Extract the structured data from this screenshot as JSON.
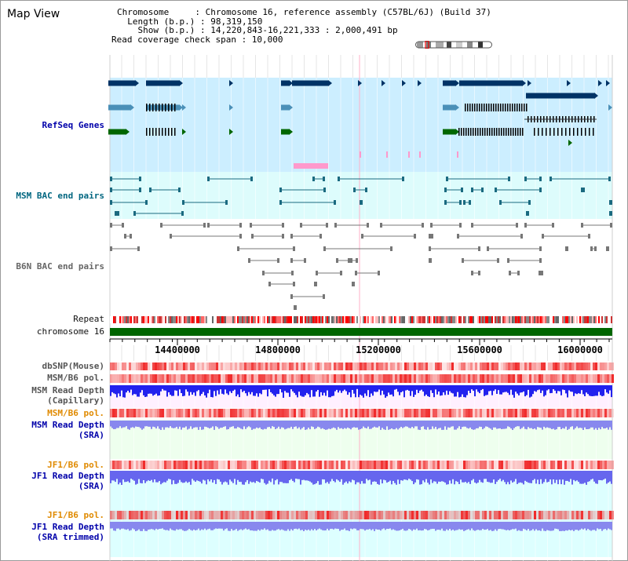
{
  "header": {
    "title": "Map View",
    "chromosome_line": "Chromosome     : Chromosome 16, reference assembly (C57BL/6J) (Build 37)",
    "length_line": "  Length (b.p.) : 98,319,150",
    "show_line": "    Show (b.p.) : 14,220,843-16,221,333 : 2,000,491 bp",
    "span_line": "Read coverage check span : 10,000"
  },
  "tracks": {
    "refseq": "RefSeq Genes",
    "msm_bac": "MSM BAC end pairs",
    "b6n_bac": "B6N BAC end pairs",
    "repeat": "Repeat",
    "chromosome": "chromosome 16",
    "dbsnp": "dbSNP(Mouse)",
    "msm_b6_pol": "MSM/B6 pol.",
    "msm_read_depth_1": "MSM Read Depth",
    "msm_read_depth_1b": "(Capillary)",
    "msm_b6_pol_2": "MSM/B6 pol.",
    "msm_read_depth_2": "MSM Read Depth",
    "msm_read_depth_2b": "(SRA)",
    "jf1_b6_pol": "JF1/B6 pol.",
    "jf1_read_depth": "JF1 Read Depth",
    "jf1_read_depth_b": "(SRA)",
    "jf1_b6_pol_2": "JF1/B6 pol.",
    "jf1_read_depth_2": "JF1 Read Depth",
    "jf1_read_depth_2b": "(SRA trimmed)"
  },
  "axis": {
    "ticks": [
      "14400000",
      "14800000",
      "15200000",
      "15600000",
      "16000000"
    ]
  },
  "colors": {
    "refseq_bg": "#cceeff",
    "bac_bg": "#ddfcfc",
    "gene_dark": "#003366",
    "gene_mid": "#4a90b8",
    "gene_green": "#006600",
    "chrom_green": "#006600",
    "pink": "#ff99cc",
    "capillary_bg": "#fff0ff",
    "sra_bg": "#eeffee",
    "jf1_bg": "#ddffff"
  }
}
